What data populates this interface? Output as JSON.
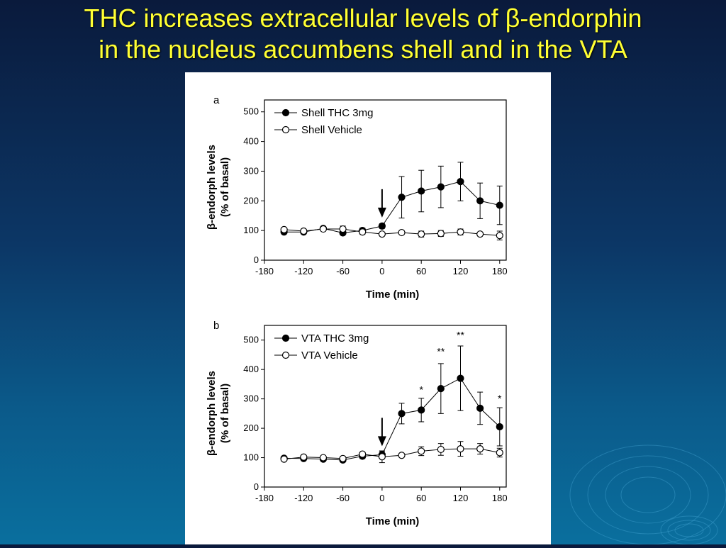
{
  "slide": {
    "title_line1": "THC increases extracellular levels of β-endorphin",
    "title_line2": "in the nucleus accumbens shell and in the VTA"
  },
  "colors": {
    "title": "#ffff33",
    "background_top": "#0a1a3c",
    "background_bottom": "#0a6f9e"
  },
  "chart_data": [
    {
      "type": "line",
      "panel_label": "a",
      "xlabel": "Time (min)",
      "ylabel_line1": "β-endorph levels",
      "ylabel_line2": "(% of basal)",
      "xlim": [
        -180,
        190
      ],
      "ylim": [
        0,
        540
      ],
      "xticks": [
        -180,
        -120,
        -60,
        0,
        60,
        120,
        180
      ],
      "yticks": [
        0,
        100,
        200,
        300,
        400,
        500
      ],
      "arrow_at_x": 0,
      "legend_position": "top-left",
      "series": [
        {
          "name": "Shell THC 3mg",
          "marker": "filled",
          "x": [
            -150,
            -120,
            -90,
            -60,
            -30,
            0,
            30,
            60,
            90,
            120,
            150,
            180
          ],
          "y": [
            95,
            95,
            107,
            92,
            100,
            115,
            212,
            233,
            247,
            265,
            200,
            185
          ],
          "err": [
            5,
            5,
            5,
            5,
            8,
            8,
            70,
            70,
            70,
            65,
            60,
            65
          ]
        },
        {
          "name": "Shell Vehicle",
          "marker": "open",
          "x": [
            -150,
            -120,
            -90,
            -60,
            -30,
            0,
            30,
            60,
            90,
            120,
            150,
            180
          ],
          "y": [
            103,
            98,
            105,
            105,
            95,
            88,
            93,
            88,
            90,
            95,
            88,
            83
          ],
          "err": [
            5,
            5,
            5,
            10,
            8,
            5,
            5,
            10,
            10,
            10,
            5,
            15
          ]
        }
      ],
      "annotations": []
    },
    {
      "type": "line",
      "panel_label": "b",
      "xlabel": "Time (min)",
      "ylabel_line1": "β-endorph levels",
      "ylabel_line2": "(% of basal)",
      "xlim": [
        -180,
        190
      ],
      "ylim": [
        0,
        550
      ],
      "xticks": [
        -180,
        -120,
        -60,
        0,
        60,
        120,
        180
      ],
      "yticks": [
        0,
        100,
        200,
        300,
        400,
        500
      ],
      "arrow_at_x": 0,
      "legend_position": "top-left",
      "series": [
        {
          "name": "VTA THC 3mg",
          "marker": "filled",
          "x": [
            -150,
            -120,
            -90,
            -60,
            -30,
            0,
            30,
            60,
            90,
            120,
            150,
            180
          ],
          "y": [
            98,
            97,
            95,
            92,
            105,
            110,
            250,
            262,
            335,
            370,
            268,
            205
          ],
          "err": [
            5,
            5,
            5,
            5,
            8,
            12,
            35,
            40,
            85,
            110,
            55,
            65
          ]
        },
        {
          "name": "VTA Vehicle",
          "marker": "open",
          "x": [
            -150,
            -120,
            -90,
            -60,
            -30,
            0,
            30,
            60,
            90,
            120,
            150,
            180
          ],
          "y": [
            95,
            102,
            100,
            97,
            112,
            103,
            108,
            122,
            128,
            130,
            130,
            117
          ],
          "err": [
            5,
            5,
            5,
            5,
            5,
            20,
            5,
            15,
            20,
            25,
            18,
            15
          ]
        }
      ],
      "annotations": [
        {
          "text": "*",
          "x": 60,
          "y": 320
        },
        {
          "text": "**",
          "x": 90,
          "y": 450
        },
        {
          "text": "**",
          "x": 120,
          "y": 505
        },
        {
          "text": "*",
          "x": 180,
          "y": 290
        }
      ]
    }
  ]
}
